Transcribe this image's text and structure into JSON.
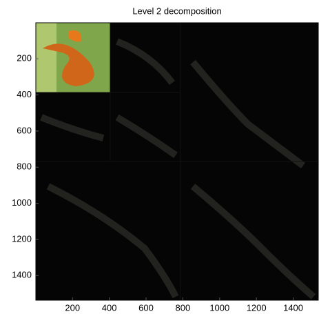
{
  "chart_data": {
    "type": "image",
    "title": "Level 2 decomposition",
    "xlim": [
      0.5,
      1536.5
    ],
    "ylim": [
      0.5,
      1536.5
    ],
    "xticks": [
      200,
      400,
      600,
      800,
      1000,
      1200,
      1400
    ],
    "yticks": [
      200,
      400,
      600,
      800,
      1000,
      1200,
      1400
    ],
    "y_reversed": true
  }
}
